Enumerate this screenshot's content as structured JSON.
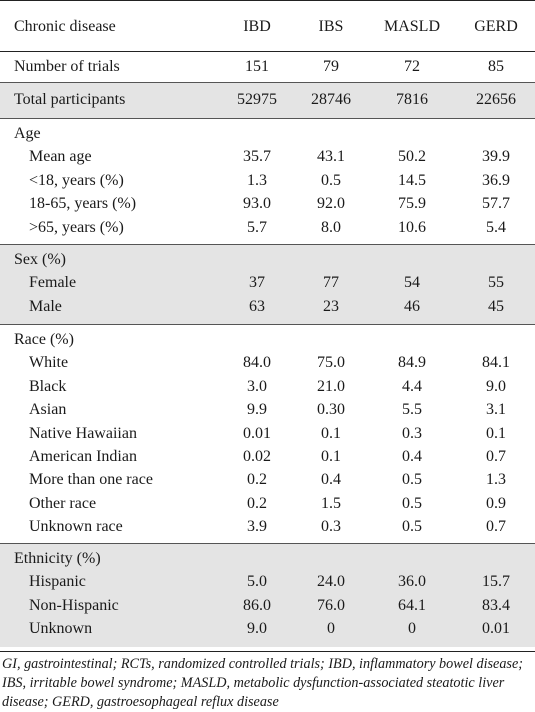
{
  "header": {
    "label": "Chronic disease",
    "cols": [
      "IBD",
      "IBS",
      "MASLD",
      "GERD"
    ]
  },
  "trials": {
    "label": "Number of trials",
    "vals": [
      "151",
      "79",
      "72",
      "85"
    ]
  },
  "participants": {
    "label": "Total participants",
    "vals": [
      "52975",
      "28746",
      "7816",
      "22656"
    ]
  },
  "age": {
    "title": "Age",
    "rows": [
      {
        "label": "Mean age",
        "vals": [
          "35.7",
          "43.1",
          "50.2",
          "39.9"
        ]
      },
      {
        "label": "<18, years (%)",
        "vals": [
          "1.3",
          "0.5",
          "14.5",
          "36.9"
        ]
      },
      {
        "label": "18-65, years (%)",
        "vals": [
          "93.0",
          "92.0",
          "75.9",
          "57.7"
        ]
      },
      {
        "label": ">65, years (%)",
        "vals": [
          "5.7",
          "8.0",
          "10.6",
          "5.4"
        ]
      }
    ]
  },
  "sex": {
    "title": "Sex (%)",
    "rows": [
      {
        "label": "Female",
        "vals": [
          "37",
          "77",
          "54",
          "55"
        ]
      },
      {
        "label": "Male",
        "vals": [
          "63",
          "23",
          "46",
          "45"
        ]
      }
    ]
  },
  "race": {
    "title": "Race (%)",
    "rows": [
      {
        "label": "White",
        "vals": [
          "84.0",
          "75.0",
          "84.9",
          "84.1"
        ]
      },
      {
        "label": "Black",
        "vals": [
          "3.0",
          "21.0",
          "4.4",
          "9.0"
        ]
      },
      {
        "label": "Asian",
        "vals": [
          "9.9",
          "0.30",
          "5.5",
          "3.1"
        ]
      },
      {
        "label": "Native Hawaiian",
        "vals": [
          "0.01",
          "0.1",
          "0.3",
          "0.1"
        ]
      },
      {
        "label": "American Indian",
        "vals": [
          "0.02",
          "0.1",
          "0.4",
          "0.7"
        ]
      },
      {
        "label": "More than one race",
        "vals": [
          "0.2",
          "0.4",
          "0.5",
          "1.3"
        ]
      },
      {
        "label": "Other race",
        "vals": [
          "0.2",
          "1.5",
          "0.5",
          "0.9"
        ]
      },
      {
        "label": "Unknown race",
        "vals": [
          "3.9",
          "0.3",
          "0.5",
          "0.7"
        ]
      }
    ]
  },
  "ethnicity": {
    "title": "Ethnicity (%)",
    "rows": [
      {
        "label": "Hispanic",
        "vals": [
          "5.0",
          "24.0",
          "36.0",
          "15.7"
        ]
      },
      {
        "label": "Non-Hispanic",
        "vals": [
          "86.0",
          "76.0",
          "64.1",
          "83.4"
        ]
      },
      {
        "label": "Unknown",
        "vals": [
          "9.0",
          "0",
          "0",
          "0.01"
        ]
      }
    ]
  },
  "footnote": "GI, gastrointestinal; RCTs, randomized controlled trials; IBD, inflammatory bowel disease; IBS, irritable bowel syndrome; MASLD, metabolic dysfunction-associated steatotic liver disease; GERD, gastroesophageal reflux disease"
}
